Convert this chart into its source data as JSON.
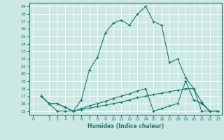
{
  "xlabel": "Humidex (Indice chaleur)",
  "bg_color": "#cce8e4",
  "line_color": "#1a7a6e",
  "grid_color": "#ffffff",
  "xlim": [
    -0.5,
    23.5
  ],
  "ylim": [
    14.5,
    29.5
  ],
  "yticks": [
    15,
    16,
    17,
    18,
    19,
    20,
    21,
    22,
    23,
    24,
    25,
    26,
    27,
    28,
    29
  ],
  "xticks": [
    0,
    2,
    3,
    4,
    5,
    6,
    7,
    8,
    9,
    10,
    11,
    12,
    13,
    14,
    15,
    16,
    17,
    18,
    19,
    20,
    21,
    22,
    23
  ],
  "line1_x": [
    1,
    2,
    3,
    4,
    5,
    6,
    7,
    8,
    9,
    10,
    11,
    12,
    13,
    14,
    15,
    16,
    17,
    18,
    19,
    20,
    21,
    22,
    23
  ],
  "line1_y": [
    17,
    16,
    15,
    15,
    15,
    16.5,
    20.5,
    22.2,
    25.5,
    26.8,
    27.2,
    26.5,
    28.0,
    29.0,
    27.0,
    26.5,
    21.5,
    22.0,
    19.5,
    18.0,
    16.2,
    15.0,
    15.0
  ],
  "line2_x": [
    1,
    2,
    3,
    4,
    5,
    6,
    7,
    8,
    9,
    10,
    11,
    12,
    13,
    14,
    15,
    16,
    17,
    18,
    19,
    20,
    21,
    22,
    23
  ],
  "line2_y": [
    17.0,
    16.0,
    16.0,
    15.5,
    15.0,
    15.2,
    15.4,
    15.6,
    15.8,
    16.0,
    16.2,
    16.5,
    16.8,
    17.0,
    17.2,
    17.4,
    17.6,
    17.8,
    18.0,
    18.0,
    15.0,
    15.0,
    15.0
  ],
  "line3_x": [
    1,
    2,
    3,
    4,
    5,
    6,
    7,
    8,
    9,
    10,
    11,
    12,
    13,
    14,
    15,
    16,
    17,
    18,
    19,
    20,
    21,
    22,
    23
  ],
  "line3_y": [
    17.0,
    16.0,
    16.0,
    15.5,
    15.0,
    15.3,
    15.7,
    16.0,
    16.3,
    16.7,
    17.0,
    17.3,
    17.7,
    18.0,
    15.0,
    15.3,
    15.7,
    16.0,
    19.0,
    16.5,
    16.0,
    15.0,
    15.0
  ]
}
